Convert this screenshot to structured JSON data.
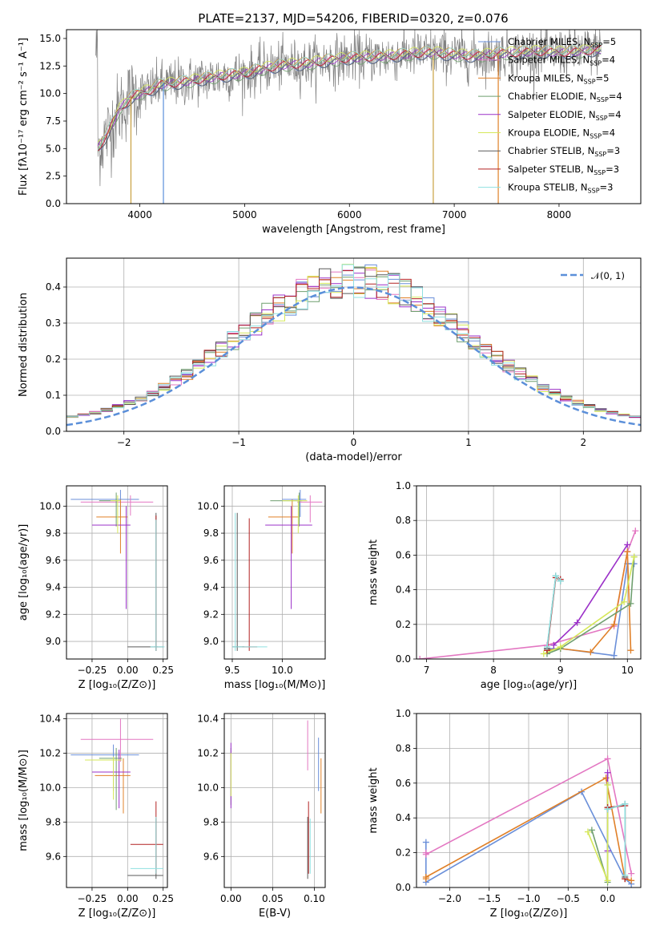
{
  "figure": {
    "title": "PLATE=2137, MJD=54206, FIBERID=0320, z=0.076"
  },
  "colors": {
    "Chabrier MILES": "#6a8fd9",
    "Salpeter MILES": "#e377c2",
    "Kroupa MILES": "#e08028",
    "Chabrier ELODIE": "#6f9f6f",
    "Salpeter ELODIE": "#9b30c8",
    "Kroupa ELODIE": "#d6e85a",
    "Chabrier STELIB": "#5a5a5a",
    "Salpeter STELIB": "#b22222",
    "Kroupa STELIB": "#8fe0e0",
    "data": "#808080",
    "normal": "#5b8fd9"
  },
  "chart_data": [
    {
      "id": "spectrum",
      "type": "line",
      "title": "PLATE=2137, MJD=54206, FIBERID=0320, z=0.076",
      "xlabel": "wavelength [Angstrom, rest frame]",
      "ylabel": "Flux [fλ10⁻¹⁷ erg cm⁻² s⁻¹ A⁻¹]",
      "xlim": [
        3300,
        8780
      ],
      "ylim": [
        0,
        15.8
      ],
      "xticks": [
        4000,
        5000,
        6000,
        7000,
        8000
      ],
      "yticks": [
        0.0,
        2.5,
        5.0,
        7.5,
        10.0,
        12.5,
        15.0
      ],
      "xtick_labels": [
        "4000",
        "5000",
        "6000",
        "7000",
        "8000"
      ],
      "ytick_labels": [
        "0.0",
        "2.5",
        "5.0",
        "7.5",
        "10.0",
        "12.5",
        "15.0"
      ],
      "grid": false,
      "legend_position": "top-right",
      "legend": [
        {
          "name": "Chabrier MILES",
          "sub": "5"
        },
        {
          "name": "Salpeter MILES",
          "sub": "4"
        },
        {
          "name": "Kroupa MILES",
          "sub": "5"
        },
        {
          "name": "Chabrier ELODIE",
          "sub": "4"
        },
        {
          "name": "Salpeter ELODIE",
          "sub": "4"
        },
        {
          "name": "Kroupa ELODIE",
          "sub": "4"
        },
        {
          "name": "Chabrier STELIB",
          "sub": "3"
        },
        {
          "name": "Salpeter STELIB",
          "sub": "3"
        },
        {
          "name": "Kroupa STELIB",
          "sub": "3"
        }
      ],
      "continuum": {
        "x": [
          3600,
          3700,
          3800,
          3900,
          4000,
          4100,
          4200,
          4400,
          4600,
          4800,
          5000,
          5200,
          5400,
          5600,
          5800,
          6000,
          6200,
          6400,
          6600,
          6800,
          7000,
          7200,
          7400,
          7600,
          7800,
          8000,
          8200,
          8400
        ],
        "y": [
          5.0,
          6.5,
          8.5,
          9.5,
          10.0,
          10.3,
          10.8,
          11.0,
          11.3,
          11.6,
          11.8,
          12.3,
          12.6,
          12.7,
          13.0,
          13.2,
          13.3,
          13.4,
          13.6,
          13.7,
          13.5,
          13.4,
          13.6,
          13.7,
          13.8,
          13.7,
          13.8,
          14.0
        ]
      },
      "spikes": [
        {
          "x": 3915,
          "ymin": 0,
          "ymax": 9.8,
          "color": "#c8a040"
        },
        {
          "x": 4225,
          "ymin": 0,
          "ymax": 11.0,
          "color": "#5a8fd9"
        },
        {
          "x": 6800,
          "ymin": 0,
          "ymax": 13.5,
          "color": "#c8a040"
        },
        {
          "x": 7420,
          "ymin": 0,
          "ymax": 13.5,
          "color": "#e08028"
        }
      ]
    },
    {
      "id": "residuals",
      "type": "line",
      "xlabel": "(data-model)/error",
      "ylabel": "Normed distribution",
      "xlim": [
        -2.5,
        2.5
      ],
      "ylim": [
        0,
        0.48
      ],
      "xticks": [
        -2,
        -1,
        0,
        1,
        2
      ],
      "yticks": [
        0.0,
        0.1,
        0.2,
        0.3,
        0.4
      ],
      "xtick_labels": [
        "−2",
        "−1",
        "0",
        "1",
        "2"
      ],
      "ytick_labels": [
        "0.0",
        "0.1",
        "0.2",
        "0.3",
        "0.4"
      ],
      "grid": true,
      "legend_position": "top-right",
      "legend": [
        "𝒩(0, 1)"
      ],
      "normal": {
        "mu": 0,
        "sigma": 1
      },
      "bin_width": 0.1
    },
    {
      "id": "age-vs-Z",
      "type": "scatter",
      "xlabel": "Z [log₁₀(Z/Z⊙)]",
      "ylabel": "age  [log₁₀(age/yr)]",
      "xlim": [
        -0.43,
        0.28
      ],
      "ylim": [
        8.87,
        10.15
      ],
      "xticks": [
        -0.25,
        0.0,
        0.25
      ],
      "yticks": [
        9.0,
        9.2,
        9.4,
        9.6,
        9.8,
        10.0
      ],
      "xtick_labels": [
        "−0.25",
        "0.00",
        "0.25"
      ],
      "ytick_labels": [
        "9.0",
        "9.2",
        "9.4",
        "9.6",
        "9.8",
        "10.0"
      ],
      "grid": true,
      "points": [
        {
          "s": "Chabrier MILES",
          "x": -0.05,
          "y": 10.05,
          "xlo": -0.4,
          "xhi": 0.08,
          "ylo": 9.92,
          "yhi": 10.12
        },
        {
          "s": "Salpeter MILES",
          "x": 0.02,
          "y": 10.03,
          "xlo": -0.33,
          "xhi": 0.18,
          "ylo": 9.93,
          "yhi": 10.08
        },
        {
          "s": "Kroupa MILES",
          "x": -0.05,
          "y": 9.92,
          "xlo": -0.22,
          "xhi": 0.0,
          "ylo": 9.65,
          "yhi": 10.05
        },
        {
          "s": "Chabrier ELODIE",
          "x": -0.08,
          "y": 10.04,
          "xlo": -0.2,
          "xhi": -0.07,
          "ylo": 9.85,
          "yhi": 10.1
        },
        {
          "s": "Salpeter ELODIE",
          "x": -0.01,
          "y": 9.86,
          "xlo": -0.25,
          "xhi": 0.02,
          "ylo": 9.24,
          "yhi": 10.0
        },
        {
          "s": "Kroupa ELODIE",
          "x": -0.07,
          "y": 10.04,
          "xlo": -0.12,
          "xhi": -0.05,
          "ylo": 9.8,
          "yhi": 10.08
        },
        {
          "s": "Chabrier STELIB",
          "x": 0.2,
          "y": 8.96,
          "xlo": 0.0,
          "xhi": 0.25,
          "ylo": 8.93,
          "yhi": 9.95
        },
        {
          "s": "Salpeter STELIB",
          "x": 0.2,
          "y": 8.96,
          "xlo": 0.19,
          "xhi": 0.21,
          "ylo": 8.93,
          "yhi": 9.93
        },
        {
          "s": "Kroupa STELIB",
          "x": 0.2,
          "y": 8.96,
          "xlo": 0.16,
          "xhi": 0.26,
          "ylo": 8.93,
          "yhi": 9.9
        }
      ]
    },
    {
      "id": "age-vs-mass",
      "type": "scatter",
      "xlabel": "mass [log₁₀(M/M⊙)]",
      "ylabel": "",
      "xlim": [
        9.42,
        10.43
      ],
      "ylim": [
        8.87,
        10.15
      ],
      "xticks": [
        9.5,
        10.0
      ],
      "yticks": [
        9.0,
        9.2,
        9.4,
        9.6,
        9.8,
        10.0
      ],
      "xtick_labels": [
        "9.5",
        "10.0"
      ],
      "ytick_labels": [
        "9.0",
        "9.2",
        "9.4",
        "9.6",
        "9.8",
        "10.0"
      ],
      "grid": true,
      "points": [
        {
          "s": "Chabrier MILES",
          "x": 10.18,
          "y": 10.05,
          "xlo": 10.0,
          "xhi": 10.24,
          "ylo": 9.92,
          "yhi": 10.12
        },
        {
          "s": "Salpeter MILES",
          "x": 10.28,
          "y": 10.03,
          "xlo": 10.15,
          "xhi": 10.4,
          "ylo": 9.88,
          "yhi": 10.08
        },
        {
          "s": "Kroupa MILES",
          "x": 10.1,
          "y": 9.92,
          "xlo": 9.86,
          "xhi": 10.17,
          "ylo": 9.65,
          "yhi": 10.05
        },
        {
          "s": "Chabrier ELODIE",
          "x": 10.17,
          "y": 10.04,
          "xlo": 9.88,
          "xhi": 10.2,
          "ylo": 9.85,
          "yhi": 10.1
        },
        {
          "s": "Salpeter ELODIE",
          "x": 10.09,
          "y": 9.86,
          "xlo": 9.83,
          "xhi": 10.3,
          "ylo": 9.24,
          "yhi": 10.0
        },
        {
          "s": "Kroupa ELODIE",
          "x": 10.16,
          "y": 10.04,
          "xlo": 10.0,
          "xhi": 10.25,
          "ylo": 9.8,
          "yhi": 10.08
        },
        {
          "s": "Chabrier STELIB",
          "x": 9.55,
          "y": 8.96,
          "xlo": 9.5,
          "xhi": 9.62,
          "ylo": 8.93,
          "yhi": 9.95
        },
        {
          "s": "Salpeter STELIB",
          "x": 9.67,
          "y": 8.96,
          "xlo": 9.6,
          "xhi": 9.75,
          "ylo": 8.93,
          "yhi": 9.91
        },
        {
          "s": "Kroupa STELIB",
          "x": 9.53,
          "y": 8.96,
          "xlo": 9.5,
          "xhi": 9.85,
          "ylo": 8.93,
          "yhi": 9.95
        }
      ]
    },
    {
      "id": "weight-vs-age",
      "type": "line",
      "xlabel": "age  [log₁₀(age/yr)]",
      "ylabel": "mass weight",
      "xlim": [
        6.85,
        10.2
      ],
      "ylim": [
        0,
        1.0
      ],
      "xticks": [
        7,
        8,
        9,
        10
      ],
      "yticks": [
        0.0,
        0.2,
        0.4,
        0.6,
        0.8,
        1.0
      ],
      "xtick_labels": [
        "7",
        "8",
        "9",
        "10"
      ],
      "ytick_labels": [
        "0.0",
        "0.2",
        "0.4",
        "0.6",
        "0.8",
        "1.0"
      ],
      "grid": true,
      "series": [
        {
          "s": "Salpeter MILES",
          "x": [
            6.9,
            8.8,
            9.8,
            10.0,
            10.12
          ],
          "y": [
            0.0,
            0.08,
            0.19,
            0.62,
            0.74
          ]
        },
        {
          "s": "Chabrier MILES",
          "x": [
            8.8,
            9.0,
            9.8,
            10.0,
            10.1
          ],
          "y": [
            0.06,
            0.06,
            0.02,
            0.55,
            0.55
          ]
        },
        {
          "s": "Kroupa MILES",
          "x": [
            8.8,
            9.0,
            9.45,
            9.8,
            10.0,
            10.05
          ],
          "y": [
            0.05,
            0.06,
            0.04,
            0.2,
            0.62,
            0.05
          ]
        },
        {
          "s": "Salpeter ELODIE",
          "x": [
            8.9,
            9.25,
            10.0
          ],
          "y": [
            0.08,
            0.21,
            0.66
          ]
        },
        {
          "s": "Chabrier ELODIE",
          "x": [
            8.8,
            9.0,
            10.05,
            10.1
          ],
          "y": [
            0.03,
            0.06,
            0.32,
            0.59
          ]
        },
        {
          "s": "Kroupa ELODIE",
          "x": [
            8.75,
            9.0,
            9.95,
            10.1
          ],
          "y": [
            0.03,
            0.07,
            0.33,
            0.59
          ]
        },
        {
          "s": "Chabrier STELIB",
          "x": [
            8.8,
            8.93,
            9.0
          ],
          "y": [
            0.06,
            0.48,
            0.45
          ]
        },
        {
          "s": "Salpeter STELIB",
          "x": [
            8.8,
            8.93,
            9.0
          ],
          "y": [
            0.05,
            0.47,
            0.46
          ]
        },
        {
          "s": "Kroupa STELIB",
          "x": [
            8.8,
            8.93,
            9.0
          ],
          "y": [
            0.07,
            0.48,
            0.45
          ]
        }
      ]
    },
    {
      "id": "mass-vs-Z",
      "type": "scatter",
      "xlabel": "Z [log₁₀(Z/Z⊙)]",
      "ylabel": "mass [log₁₀(M/M⊙)]",
      "xlim": [
        -0.43,
        0.28
      ],
      "ylim": [
        9.42,
        10.43
      ],
      "xticks": [
        -0.25,
        0.0,
        0.25
      ],
      "yticks": [
        9.6,
        9.8,
        10.0,
        10.2,
        10.4
      ],
      "xtick_labels": [
        "−0.25",
        "0.00",
        "0.25"
      ],
      "ytick_labels": [
        "9.6",
        "9.8",
        "10.0",
        "10.2",
        "10.4"
      ],
      "grid": true,
      "points": [
        {
          "s": "Chabrier MILES",
          "x": -0.1,
          "y": 10.19,
          "xlo": -0.4,
          "xhi": 0.08,
          "ylo": 9.98,
          "yhi": 10.25
        },
        {
          "s": "Salpeter MILES",
          "x": -0.05,
          "y": 10.28,
          "xlo": -0.33,
          "xhi": 0.18,
          "ylo": 10.15,
          "yhi": 10.4
        },
        {
          "s": "Kroupa MILES",
          "x": -0.03,
          "y": 10.07,
          "xlo": -0.23,
          "xhi": 0.02,
          "ylo": 9.85,
          "yhi": 10.17
        },
        {
          "s": "Chabrier ELODIE",
          "x": -0.08,
          "y": 10.17,
          "xlo": -0.2,
          "xhi": -0.04,
          "ylo": 9.87,
          "yhi": 10.23
        },
        {
          "s": "Salpeter ELODIE",
          "x": -0.06,
          "y": 10.09,
          "xlo": -0.25,
          "xhi": 0.02,
          "ylo": 9.88,
          "yhi": 10.22
        },
        {
          "s": "Kroupa ELODIE",
          "x": -0.1,
          "y": 10.16,
          "xlo": -0.3,
          "xhi": -0.04,
          "ylo": 9.93,
          "yhi": 10.18
        },
        {
          "s": "Chabrier STELIB",
          "x": 0.2,
          "y": 9.49,
          "xlo": 0.0,
          "xhi": 0.25,
          "ylo": 9.47,
          "yhi": 9.82
        },
        {
          "s": "Salpeter STELIB",
          "x": 0.2,
          "y": 9.67,
          "xlo": 0.02,
          "xhi": 0.25,
          "ylo": 9.5,
          "yhi": 9.92
        },
        {
          "s": "Kroupa STELIB",
          "x": 0.2,
          "y": 9.53,
          "xlo": 0.02,
          "xhi": 0.25,
          "ylo": 9.5,
          "yhi": 9.83
        }
      ]
    },
    {
      "id": "mass-vs-EBV",
      "type": "scatter",
      "xlabel": "E(B-V)",
      "ylabel": "",
      "xlim": [
        -0.008,
        0.113
      ],
      "ylim": [
        9.42,
        10.43
      ],
      "xticks": [
        0.0,
        0.05,
        0.1
      ],
      "yticks": [
        9.6,
        9.8,
        10.0,
        10.2,
        10.4
      ],
      "xtick_labels": [
        "0.00",
        "0.05",
        "0.10"
      ],
      "ytick_labels": [
        "9.6",
        "9.8",
        "10.0",
        "10.2",
        "10.4"
      ],
      "grid": true,
      "points": [
        {
          "s": "Chabrier MILES",
          "x": 0.105,
          "y": 10.19,
          "ylo": 9.98,
          "yhi": 10.29
        },
        {
          "s": "Salpeter MILES",
          "x": 0.092,
          "y": 10.28,
          "ylo": 10.1,
          "yhi": 10.39
        },
        {
          "s": "Kroupa MILES",
          "x": 0.108,
          "y": 10.07,
          "ylo": 9.85,
          "yhi": 10.17
        },
        {
          "s": "Chabrier ELODIE",
          "x": 0.0,
          "y": 10.17,
          "ylo": 9.9,
          "yhi": 10.23
        },
        {
          "s": "Salpeter ELODIE",
          "x": 0.0,
          "y": 10.09,
          "ylo": 9.88,
          "yhi": 10.26
        },
        {
          "s": "Kroupa ELODIE",
          "x": 0.0,
          "y": 10.16,
          "ylo": 9.95,
          "yhi": 10.2
        },
        {
          "s": "Chabrier STELIB",
          "x": 0.092,
          "y": 9.49,
          "ylo": 9.47,
          "yhi": 9.83
        },
        {
          "s": "Salpeter STELIB",
          "x": 0.093,
          "y": 9.67,
          "ylo": 9.5,
          "yhi": 9.92
        },
        {
          "s": "Kroupa STELIB",
          "x": 0.095,
          "y": 9.53,
          "ylo": 9.5,
          "yhi": 9.82
        }
      ]
    },
    {
      "id": "weight-vs-Z",
      "type": "line",
      "xlabel": "Z [log₁₀(Z/Z⊙)]",
      "ylabel": "mass weight",
      "xlim": [
        -2.42,
        0.42
      ],
      "ylim": [
        0,
        1.0
      ],
      "xticks": [
        -2.0,
        -1.5,
        -1.0,
        -0.5,
        0.0
      ],
      "yticks": [
        0.0,
        0.2,
        0.4,
        0.6,
        0.8,
        1.0
      ],
      "xtick_labels": [
        "−2.0",
        "−1.5",
        "−1.0",
        "−0.5",
        "0.0"
      ],
      "ytick_labels": [
        "0.0",
        "0.2",
        "0.4",
        "0.6",
        "0.8",
        "1.0"
      ],
      "grid": true,
      "series": [
        {
          "s": "Chabrier MILES",
          "x": [
            -2.3,
            -2.3,
            -0.33,
            0.22,
            0.3
          ],
          "y": [
            0.26,
            0.03,
            0.55,
            0.05,
            0.02
          ]
        },
        {
          "s": "Salpeter MILES",
          "x": [
            -2.3,
            -2.3,
            0.0,
            0.3
          ],
          "y": [
            0.2,
            0.19,
            0.74,
            0.08
          ]
        },
        {
          "s": "Kroupa MILES",
          "x": [
            -2.3,
            -2.3,
            -0.02,
            0.22,
            0.3
          ],
          "y": [
            0.05,
            0.06,
            0.63,
            0.05,
            0.04
          ]
        },
        {
          "s": "Salpeter ELODIE",
          "x": [
            0.0,
            0.0
          ],
          "y": [
            0.66,
            0.21
          ]
        },
        {
          "s": "Chabrier ELODIE",
          "x": [
            -0.2,
            0.0,
            0.0
          ],
          "y": [
            0.33,
            0.03,
            0.59
          ]
        },
        {
          "s": "Kroupa ELODIE",
          "x": [
            -0.25,
            0.0,
            0.0
          ],
          "y": [
            0.32,
            0.04,
            0.59
          ]
        },
        {
          "s": "Chabrier STELIB",
          "x": [
            0.0,
            0.22,
            0.22
          ],
          "y": [
            0.45,
            0.48,
            0.06
          ]
        },
        {
          "s": "Salpeter STELIB",
          "x": [
            0.0,
            0.22,
            0.22
          ],
          "y": [
            0.46,
            0.47,
            0.05
          ]
        },
        {
          "s": "Kroupa STELIB",
          "x": [
            0.0,
            0.22,
            0.22
          ],
          "y": [
            0.45,
            0.48,
            0.07
          ]
        }
      ]
    }
  ]
}
